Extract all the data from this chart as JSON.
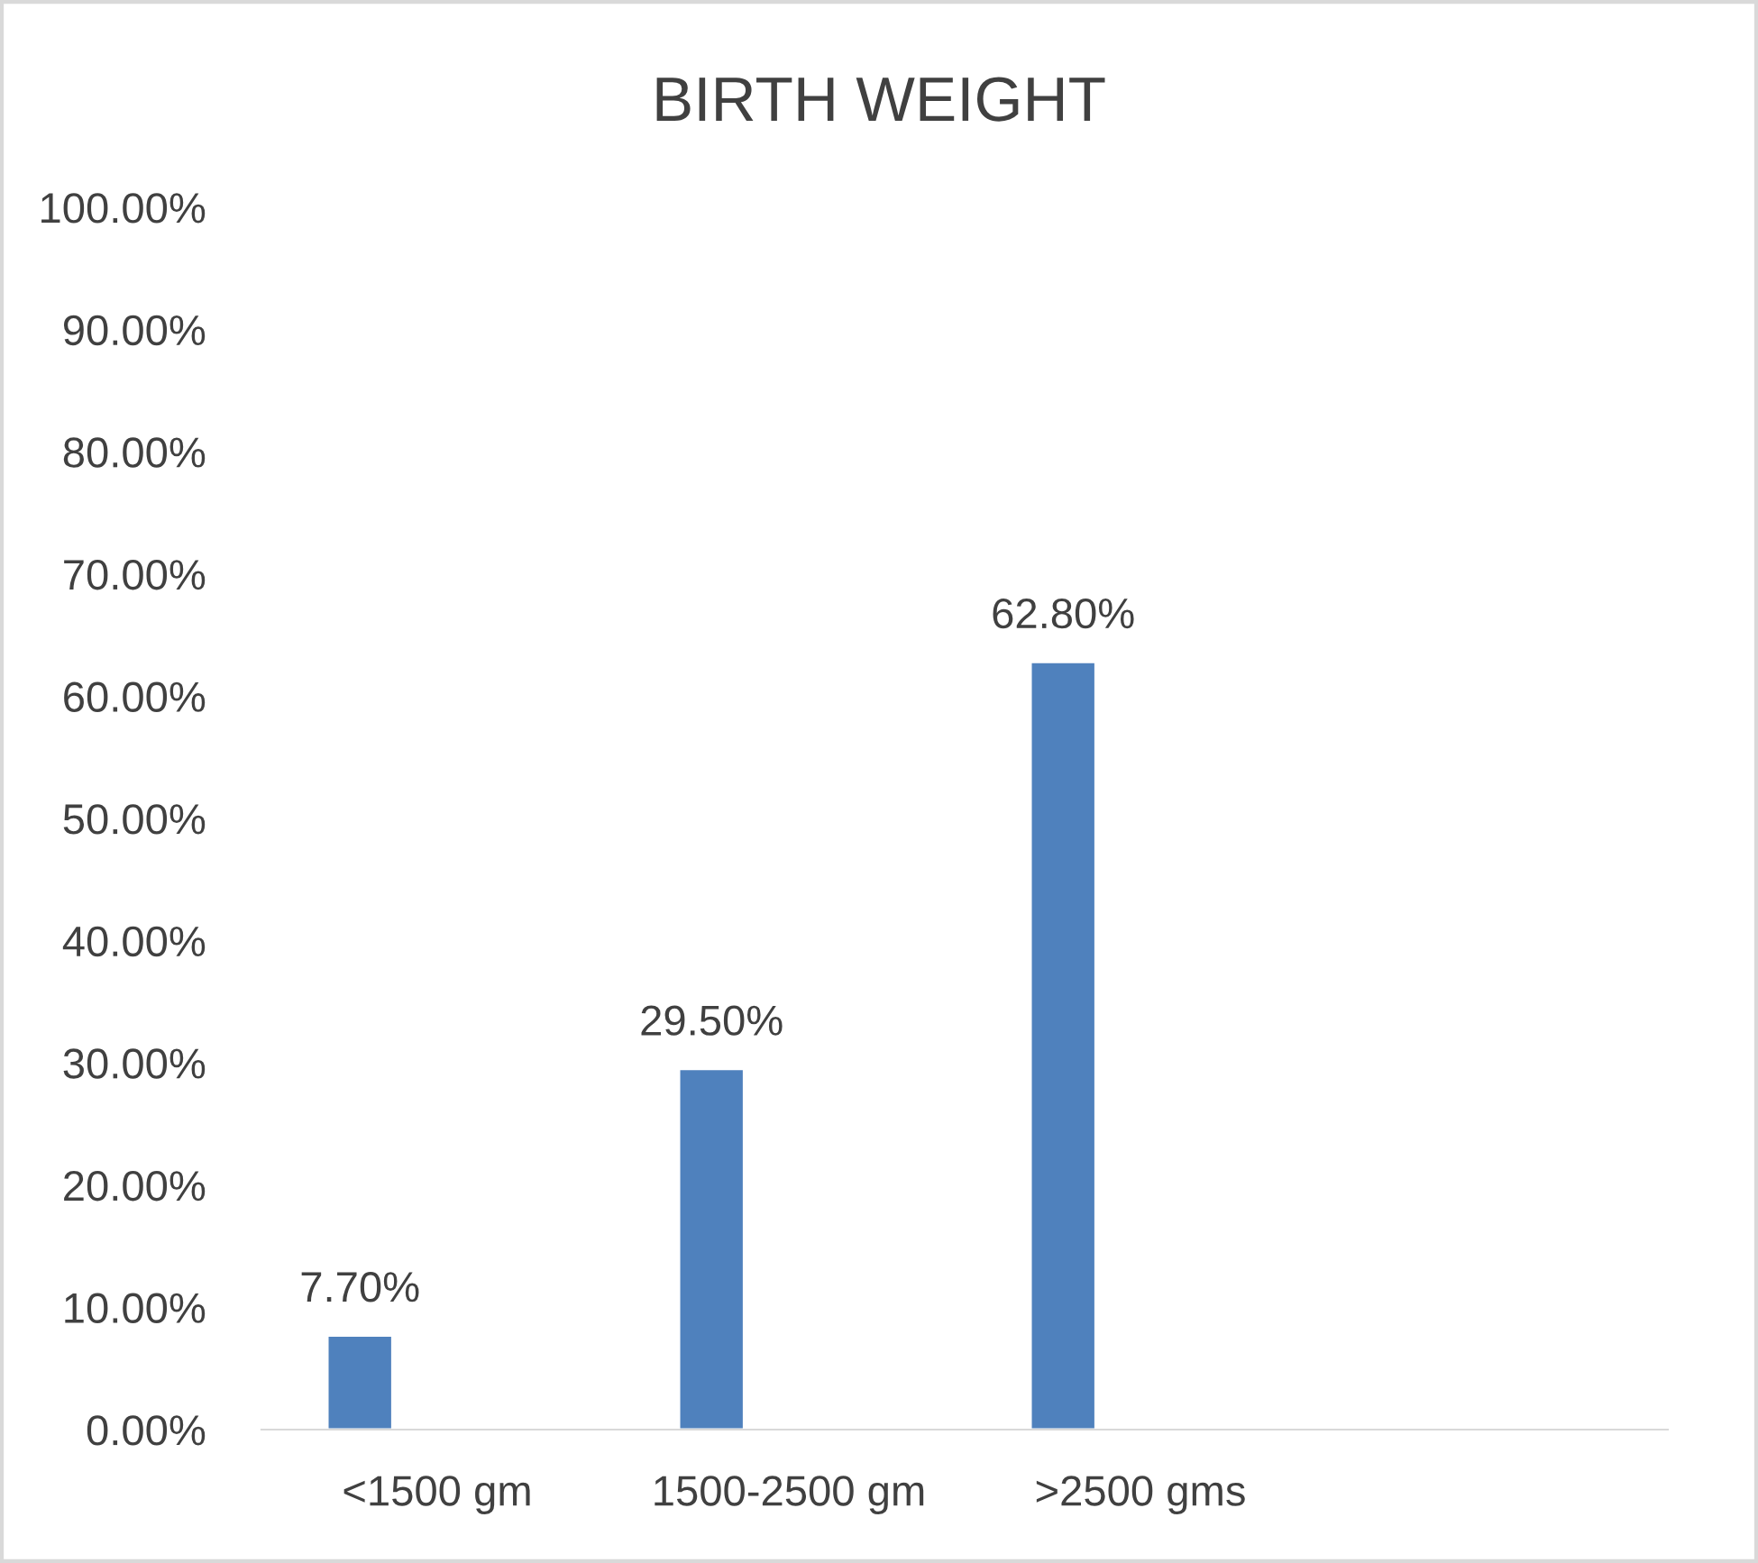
{
  "chart_data": {
    "type": "bar",
    "title": "BIRTH WEIGHT",
    "categories": [
      "<1500 gm",
      "1500-2500 gm",
      ">2500 gms",
      null
    ],
    "values": [
      7.7,
      29.5,
      62.8,
      null
    ],
    "value_labels": [
      "7.70%",
      "29.50%",
      "62.80%",
      null
    ],
    "color": "#4f81bd",
    "ylim": [
      0,
      100
    ],
    "yticks": [
      {
        "value": 0,
        "label": "0.00%"
      },
      {
        "value": 10,
        "label": "10.00%"
      },
      {
        "value": 20,
        "label": "20.00%"
      },
      {
        "value": 30,
        "label": "30.00%"
      },
      {
        "value": 40,
        "label": "40.00%"
      },
      {
        "value": 50,
        "label": "50.00%"
      },
      {
        "value": 60,
        "label": "60.00%"
      },
      {
        "value": 70,
        "label": "70.00%"
      },
      {
        "value": 80,
        "label": "80.00%"
      },
      {
        "value": 90,
        "label": "90.00%"
      },
      {
        "value": 100,
        "label": "100.00%"
      }
    ],
    "grid": false,
    "legend": false
  }
}
